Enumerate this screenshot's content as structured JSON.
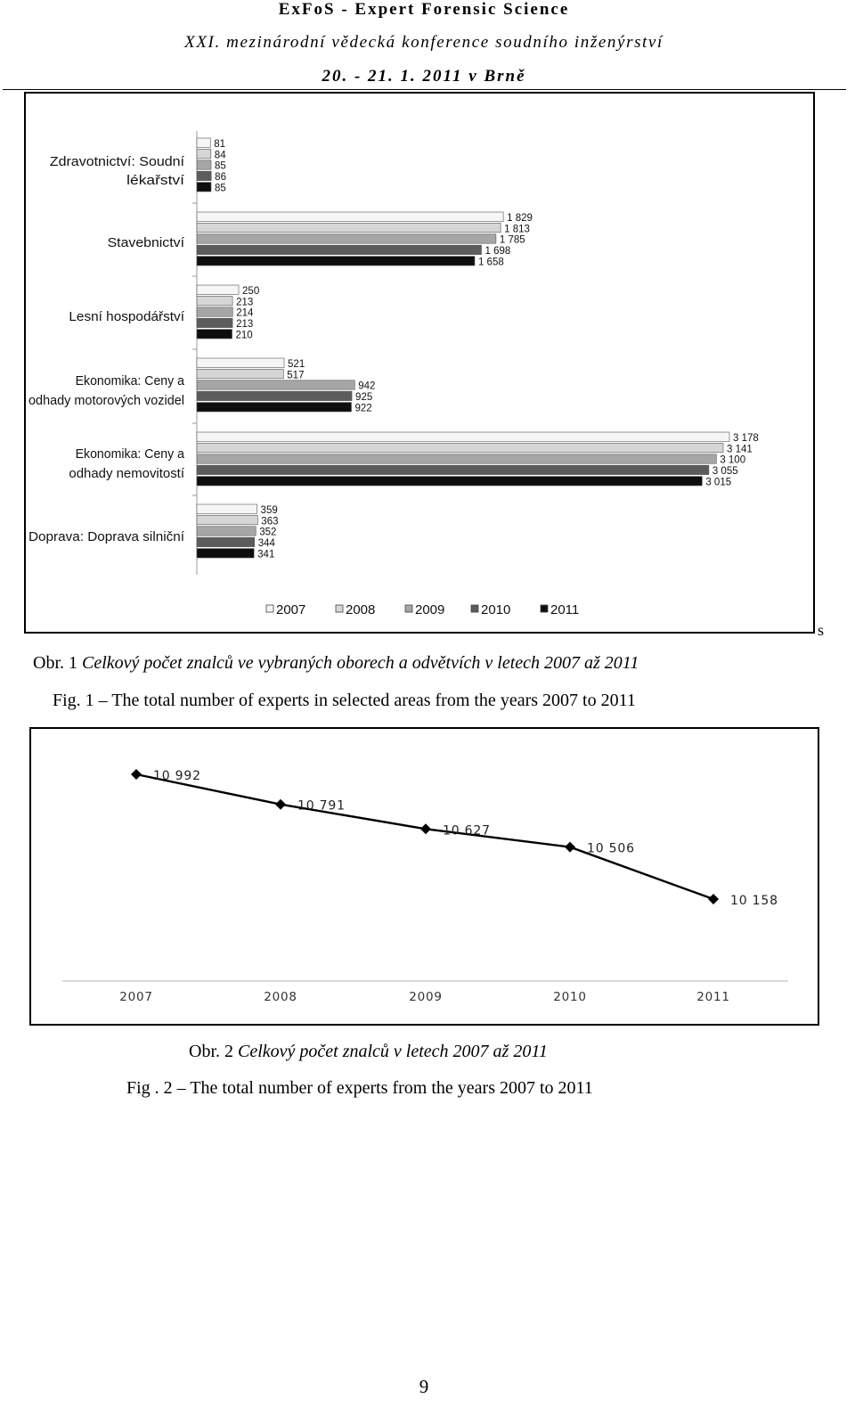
{
  "header": {
    "line1": "ExFoS - Expert Forensic Science",
    "line2": "XXI. mezinárodní vědecká konference soudního inženýrství",
    "line3": "20. - 21. 1. 2011 v Brně"
  },
  "stray_mark": "s",
  "figure1": {
    "caption_prefix": "Obr. 1",
    "caption_cz": "Celkový počet znalců ve vybraných oborech a odvětvích v letech 2007 až 2011",
    "caption_en": "Fig. 1 – The total number of experts in selected areas from the years 2007 to 2011"
  },
  "figure2": {
    "caption_prefix": "Obr. 2",
    "caption_cz": "Celkový počet znalců v letech 2007 až 2011",
    "caption_en": "Fig . 2 – The total number of experts from the years 2007 to 2011"
  },
  "page_number": "9",
  "chart_data": [
    {
      "type": "bar",
      "orientation": "horizontal",
      "categories": [
        "Zdravotnictví: Soudní lékařství",
        "Stavebnictví",
        "Lesní hospodářství",
        "Ekonomika: Ceny a odhady motorových vozidel",
        "Ekonomika: Ceny a odhady nemovitostí",
        "Doprava: Doprava silniční"
      ],
      "series": [
        {
          "name": "2007",
          "color": "#f6f6f6",
          "values": [
            81,
            1829,
            250,
            521,
            3178,
            359
          ],
          "labels": [
            "81",
            "1 829",
            "250",
            "521",
            "3 178",
            "359"
          ]
        },
        {
          "name": "2008",
          "color": "#d6d6d6",
          "values": [
            84,
            1813,
            213,
            517,
            3141,
            363
          ],
          "labels": [
            "84",
            "1 813",
            "213",
            "517",
            "3 141",
            "363"
          ]
        },
        {
          "name": "2009",
          "color": "#a6a6a6",
          "values": [
            85,
            1785,
            214,
            942,
            3100,
            352
          ],
          "labels": [
            "85",
            "1 785",
            "214",
            "942",
            "3 100",
            "352"
          ]
        },
        {
          "name": "2010",
          "color": "#5c5c5c",
          "values": [
            86,
            1698,
            213,
            925,
            3055,
            344
          ],
          "labels": [
            "86",
            "1 698",
            "213",
            "925",
            "3 055",
            "344"
          ]
        },
        {
          "name": "2011",
          "color": "#0e0e0e",
          "values": [
            85,
            1658,
            210,
            922,
            3015,
            341
          ],
          "labels": [
            "85",
            "1 658",
            "210",
            "922",
            "3 015",
            "341"
          ]
        }
      ],
      "legend": "bottom",
      "grid": false
    },
    {
      "type": "line",
      "categories": [
        "2007",
        "2008",
        "2009",
        "2010",
        "2011"
      ],
      "series": [
        {
          "values": [
            10992,
            10791,
            10627,
            10506,
            10158
          ],
          "labels": [
            "10 992",
            "10 791",
            "10 627",
            "10 506",
            "10 158"
          ]
        }
      ],
      "marker": "diamond",
      "grid": false
    }
  ]
}
